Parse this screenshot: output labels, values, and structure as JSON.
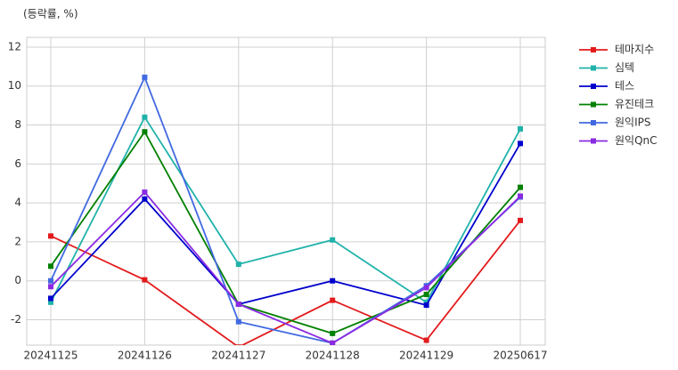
{
  "chart_data": {
    "type": "line",
    "y_label": "(등락률, %)",
    "categories": [
      "20241125",
      "20241126",
      "20241127",
      "20241128",
      "20241129",
      "20250617"
    ],
    "series": [
      {
        "name": "테마지수",
        "color": "#e31a1c",
        "values": [
          2.3,
          0.05,
          -3.4,
          -1.0,
          -3.05,
          3.1
        ]
      },
      {
        "name": "심텍",
        "color": "#20b2aa",
        "values": [
          -1.1,
          8.4,
          0.85,
          2.1,
          -1.1,
          7.8
        ]
      },
      {
        "name": "테스",
        "color": "#0000cd",
        "values": [
          -0.9,
          4.2,
          -1.2,
          0.0,
          -1.25,
          7.05
        ]
      },
      {
        "name": "유진테크",
        "color": "#008000",
        "values": [
          0.75,
          7.65,
          -1.2,
          -2.7,
          -0.7,
          4.8
        ]
      },
      {
        "name": "원익IPS",
        "color": "#4169e1",
        "values": [
          0.0,
          10.45,
          -2.1,
          -3.2,
          -0.25,
          4.3
        ]
      },
      {
        "name": "원익QnC",
        "color": "#8a2be2",
        "values": [
          -0.3,
          4.55,
          -1.2,
          -3.2,
          -0.35,
          4.35
        ]
      }
    ],
    "ylim": [
      -3.3,
      12.5
    ],
    "yticks": [
      -2,
      0,
      2,
      4,
      6,
      8,
      10,
      12
    ],
    "grid": true,
    "legend": "outside upper right"
  }
}
